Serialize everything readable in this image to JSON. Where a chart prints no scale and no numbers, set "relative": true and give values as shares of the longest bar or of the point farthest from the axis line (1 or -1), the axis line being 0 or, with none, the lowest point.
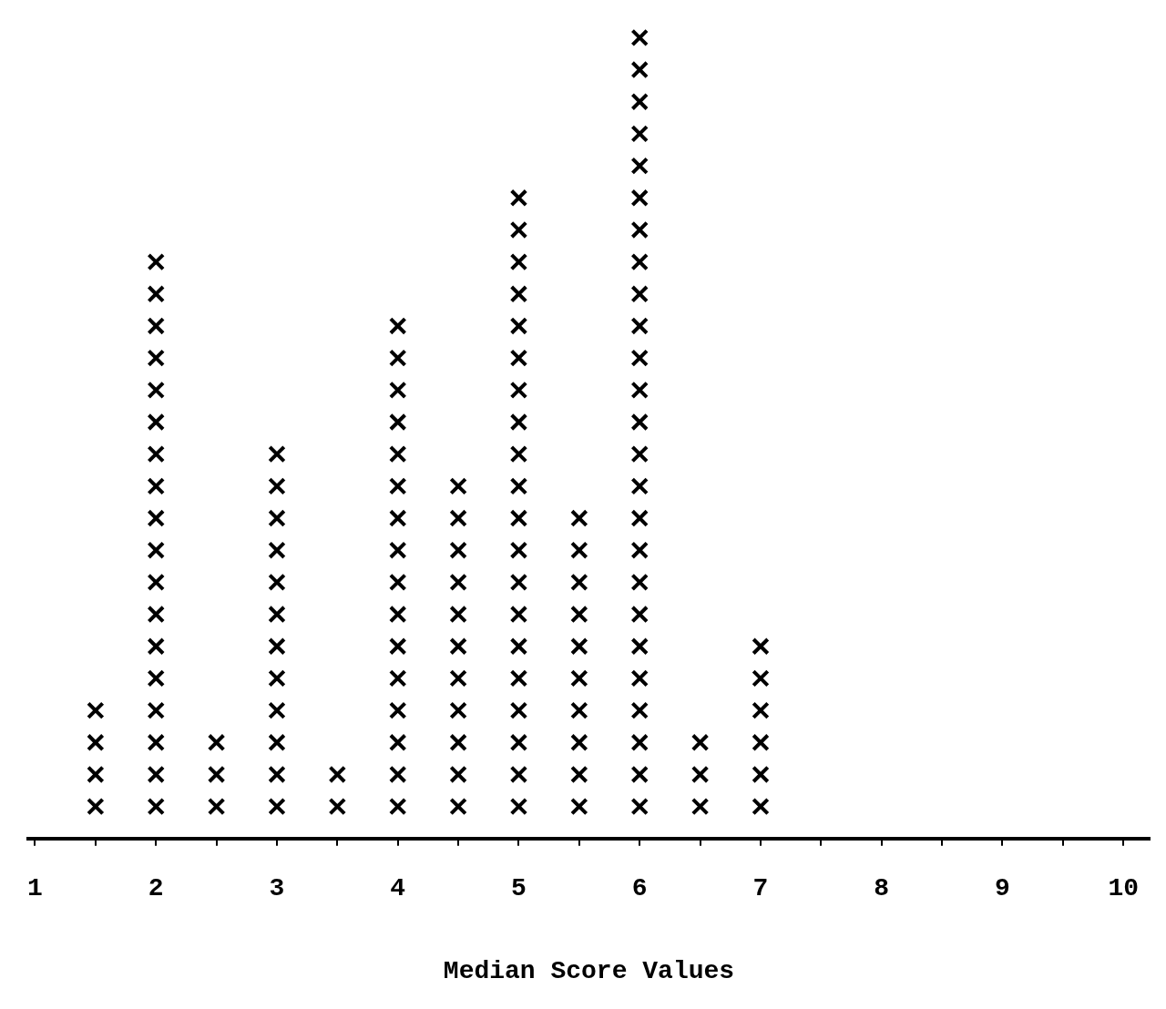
{
  "chart_data": {
    "type": "scatter",
    "xlabel": "Median Score Values",
    "x": [
      1.5,
      1.5,
      1.5,
      1.5,
      2,
      2,
      2,
      2,
      2,
      2,
      2,
      2,
      2,
      2,
      2,
      2,
      2,
      2,
      2,
      2,
      2,
      2,
      2.5,
      2.5,
      2.5,
      3,
      3,
      3,
      3,
      3,
      3,
      3,
      3,
      3,
      3,
      3,
      3,
      3.5,
      3.5,
      4,
      4,
      4,
      4,
      4,
      4,
      4,
      4,
      4,
      4,
      4,
      4,
      4,
      4,
      4,
      4,
      4.5,
      4.5,
      4.5,
      4.5,
      4.5,
      4.5,
      4.5,
      4.5,
      4.5,
      4.5,
      4.5,
      5,
      5,
      5,
      5,
      5,
      5,
      5,
      5,
      5,
      5,
      5,
      5,
      5,
      5,
      5,
      5,
      5,
      5,
      5,
      5,
      5.5,
      5.5,
      5.5,
      5.5,
      5.5,
      5.5,
      5.5,
      5.5,
      5.5,
      5.5,
      6,
      6,
      6,
      6,
      6,
      6,
      6,
      6,
      6,
      6,
      6,
      6,
      6,
      6,
      6,
      6,
      6,
      6,
      6,
      6,
      6,
      6,
      6,
      6,
      6,
      6.5,
      6.5,
      6.5,
      7,
      7,
      7,
      7,
      7,
      7
    ],
    "values": [
      0.04,
      0.08,
      0.12,
      0.16,
      0.04,
      0.08,
      0.12,
      0.16,
      0.2,
      0.24,
      0.28,
      0.32,
      0.36,
      0.4,
      0.44,
      0.48,
      0.52,
      0.56,
      0.6,
      0.64,
      0.68,
      0.72,
      0.04,
      0.08,
      0.12,
      0.04,
      0.08,
      0.12,
      0.16,
      0.2,
      0.24,
      0.28,
      0.32,
      0.36,
      0.4,
      0.44,
      0.48,
      0.04,
      0.08,
      0.04,
      0.08,
      0.12,
      0.16,
      0.2,
      0.24,
      0.28,
      0.32,
      0.36,
      0.4,
      0.44,
      0.48,
      0.52,
      0.56,
      0.6,
      0.64,
      0.04,
      0.08,
      0.12,
      0.16,
      0.2,
      0.24,
      0.28,
      0.32,
      0.36,
      0.4,
      0.44,
      0.04,
      0.08,
      0.12,
      0.16,
      0.2,
      0.24,
      0.28,
      0.32,
      0.36,
      0.4,
      0.44,
      0.48,
      0.52,
      0.56,
      0.6,
      0.64,
      0.68,
      0.72,
      0.76,
      0.8,
      0.04,
      0.08,
      0.12,
      0.16,
      0.2,
      0.24,
      0.28,
      0.32,
      0.36,
      0.4,
      0.04,
      0.08,
      0.12,
      0.16,
      0.2,
      0.24,
      0.28,
      0.32,
      0.36,
      0.4,
      0.44,
      0.48,
      0.52,
      0.56,
      0.6,
      0.64,
      0.68,
      0.72,
      0.76,
      0.8,
      0.84,
      0.88,
      0.92,
      0.96,
      1,
      0.04,
      0.08,
      0.12,
      0.04,
      0.08,
      0.12,
      0.16,
      0.2,
      0.24
    ],
    "relative": true,
    "color": "#000000",
    "marker": "cross",
    "xlim": [
      0.94,
      10.22
    ],
    "xticks": [
      1,
      {
        "value": 1.5,
        "label": null
      },
      2,
      {
        "value": 2.5,
        "label": null
      },
      3,
      {
        "value": 3.5,
        "label": null
      },
      4,
      {
        "value": 4.5,
        "label": null
      },
      5,
      {
        "value": 5.5,
        "label": null
      },
      6,
      {
        "value": 6.5,
        "label": null
      },
      7,
      {
        "value": 7.5,
        "label": null
      },
      8,
      {
        "value": 8.5,
        "label": null
      },
      9,
      {
        "value": 9.5,
        "label": null
      },
      10
    ],
    "tick_labels": "x",
    "grid": false,
    "legend": false
  }
}
